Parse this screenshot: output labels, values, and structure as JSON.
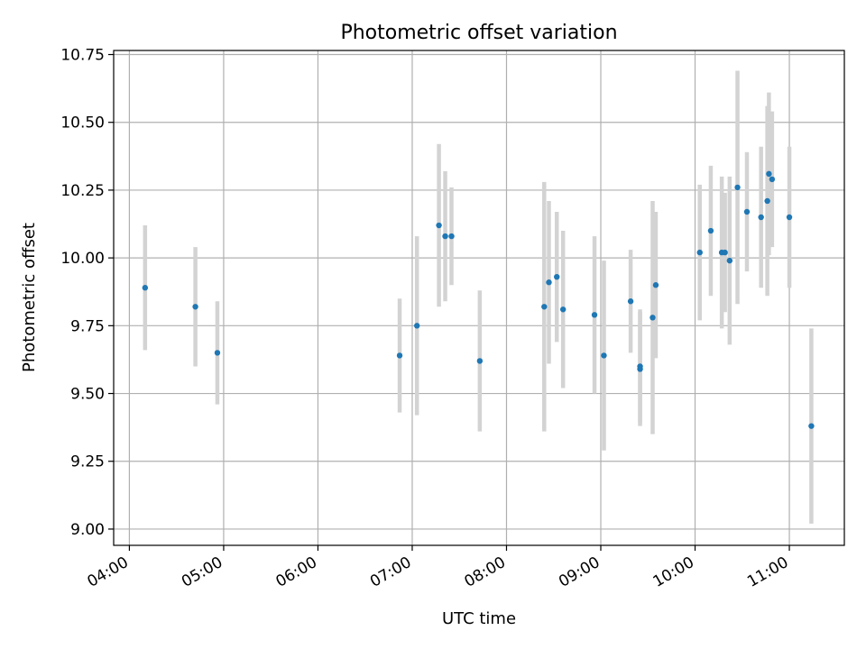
{
  "chart_data": {
    "type": "scatter",
    "title": "Photometric offset variation",
    "xlabel": "UTC time",
    "ylabel": "Photometric offset",
    "xlim": [
      "03:50",
      "11:35"
    ],
    "ylim": [
      8.94,
      10.765
    ],
    "x_ticks": [
      "04:00",
      "05:00",
      "06:00",
      "07:00",
      "08:00",
      "09:00",
      "10:00",
      "11:00"
    ],
    "y_ticks": [
      9.0,
      9.25,
      9.5,
      9.75,
      10.0,
      10.25,
      10.5,
      10.75
    ],
    "y_tick_labels": [
      "9.00",
      "9.25",
      "9.50",
      "9.75",
      "10.00",
      "10.25",
      "10.50",
      "10.75"
    ],
    "grid": true,
    "colors": {
      "marker": "#1f77b4",
      "errorbar": "#d3d3d3",
      "grid": "#b0b0b0"
    },
    "points": [
      {
        "x": "04:10",
        "y": 9.89,
        "err": 0.23
      },
      {
        "x": "04:42",
        "y": 9.82,
        "err": 0.22
      },
      {
        "x": "04:56",
        "y": 9.65,
        "err": 0.19
      },
      {
        "x": "06:52",
        "y": 9.64,
        "err": 0.21
      },
      {
        "x": "07:03",
        "y": 9.75,
        "err": 0.33
      },
      {
        "x": "07:17",
        "y": 10.12,
        "err": 0.3
      },
      {
        "x": "07:21",
        "y": 10.08,
        "err": 0.24
      },
      {
        "x": "07:25",
        "y": 10.08,
        "err": 0.18
      },
      {
        "x": "07:43",
        "y": 9.62,
        "err": 0.26
      },
      {
        "x": "08:24",
        "y": 9.82,
        "err": 0.46
      },
      {
        "x": "08:27",
        "y": 9.91,
        "err": 0.3
      },
      {
        "x": "08:32",
        "y": 9.93,
        "err": 0.24
      },
      {
        "x": "08:36",
        "y": 9.81,
        "err": 0.29
      },
      {
        "x": "08:56",
        "y": 9.79,
        "err": 0.29
      },
      {
        "x": "09:02",
        "y": 9.64,
        "err": 0.35
      },
      {
        "x": "09:19",
        "y": 9.84,
        "err": 0.19
      },
      {
        "x": "09:25",
        "y": 9.6,
        "err": 0.21
      },
      {
        "x": "09:25",
        "y": 9.59,
        "err": 0.21
      },
      {
        "x": "09:33",
        "y": 9.78,
        "err": 0.43
      },
      {
        "x": "09:35",
        "y": 9.9,
        "err": 0.27
      },
      {
        "x": "10:03",
        "y": 10.02,
        "err": 0.25
      },
      {
        "x": "10:10",
        "y": 10.1,
        "err": 0.24
      },
      {
        "x": "10:17",
        "y": 10.02,
        "err": 0.28
      },
      {
        "x": "10:19",
        "y": 10.02,
        "err": 0.22
      },
      {
        "x": "10:22",
        "y": 9.99,
        "err": 0.31
      },
      {
        "x": "10:27",
        "y": 10.26,
        "err": 0.43
      },
      {
        "x": "10:33",
        "y": 10.17,
        "err": 0.22
      },
      {
        "x": "10:42",
        "y": 10.15,
        "err": 0.26
      },
      {
        "x": "10:46",
        "y": 10.21,
        "err": 0.35
      },
      {
        "x": "10:47",
        "y": 10.31,
        "err": 0.3
      },
      {
        "x": "10:49",
        "y": 10.29,
        "err": 0.25
      },
      {
        "x": "11:00",
        "y": 10.15,
        "err": 0.26
      },
      {
        "x": "11:14",
        "y": 9.38,
        "err": 0.36
      }
    ]
  }
}
